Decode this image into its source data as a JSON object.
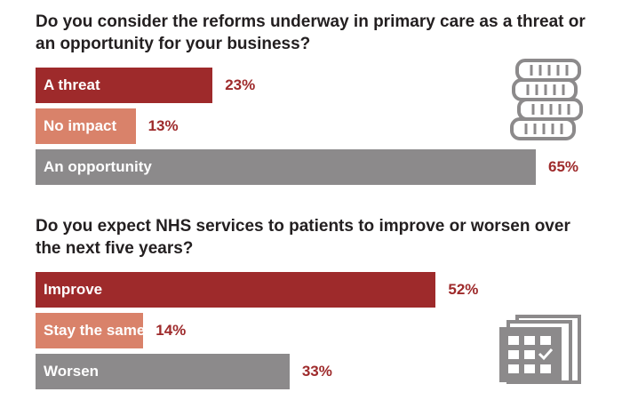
{
  "chart_data": [
    {
      "type": "bar",
      "orientation": "horizontal",
      "title": "Do you consider the reforms underway in primary care as a threat or an opportunity for your business?",
      "categories": [
        "A threat",
        "No impact",
        "An opportunity"
      ],
      "values": [
        23,
        13,
        65
      ],
      "value_labels": [
        "23%",
        "13%",
        "65%"
      ],
      "colors": [
        "#9e2a2b",
        "#d9826a",
        "#8c8a8b"
      ],
      "xlim": [
        0,
        65
      ],
      "grid": false,
      "icon": "coins-icon"
    },
    {
      "type": "bar",
      "orientation": "horizontal",
      "title": "Do you expect NHS services to patients to improve or worsen over the next five years?",
      "categories": [
        "Improve",
        "Stay the same",
        "Worsen"
      ],
      "values": [
        52,
        14,
        33
      ],
      "value_labels": [
        "52%",
        "14%",
        "33%"
      ],
      "colors": [
        "#9e2a2b",
        "#d9826a",
        "#8c8a8b"
      ],
      "xlim": [
        0,
        65
      ],
      "grid": false,
      "icon": "calendar-icon"
    }
  ]
}
